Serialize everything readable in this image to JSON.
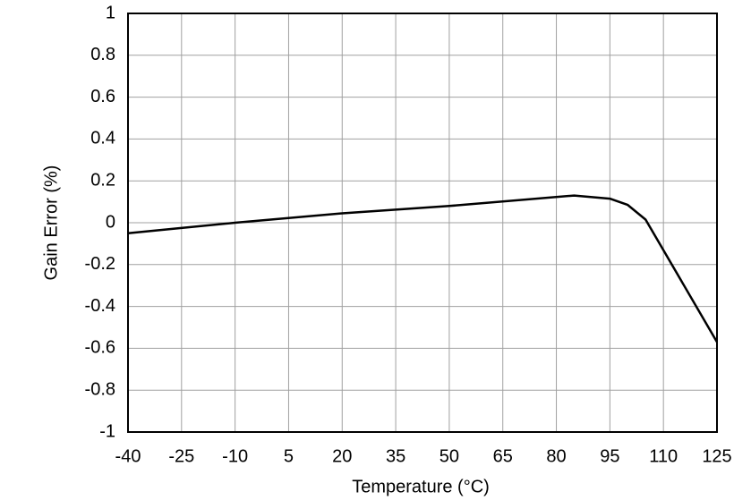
{
  "chart_data": {
    "type": "line",
    "xlabel": "Temperature (°C)",
    "ylabel": "Gain Error (%)",
    "x": [
      -40,
      -10,
      20,
      50,
      85,
      95,
      100,
      105,
      125
    ],
    "series": [
      {
        "name": "Gain Error",
        "color": "#000000",
        "values": [
          -0.05,
          0.0,
          0.045,
          0.08,
          0.13,
          0.115,
          0.085,
          0.015,
          -0.57
        ]
      }
    ],
    "xlim": [
      -40,
      125
    ],
    "xticks": [
      -40,
      -25,
      -10,
      5,
      20,
      35,
      50,
      65,
      80,
      95,
      110,
      125
    ],
    "ylim": [
      -1,
      1
    ],
    "yticks": [
      -1,
      -0.8,
      -0.6,
      -0.4,
      -0.2,
      0,
      0.2,
      0.4,
      0.6,
      0.8,
      1
    ],
    "grid": true
  }
}
